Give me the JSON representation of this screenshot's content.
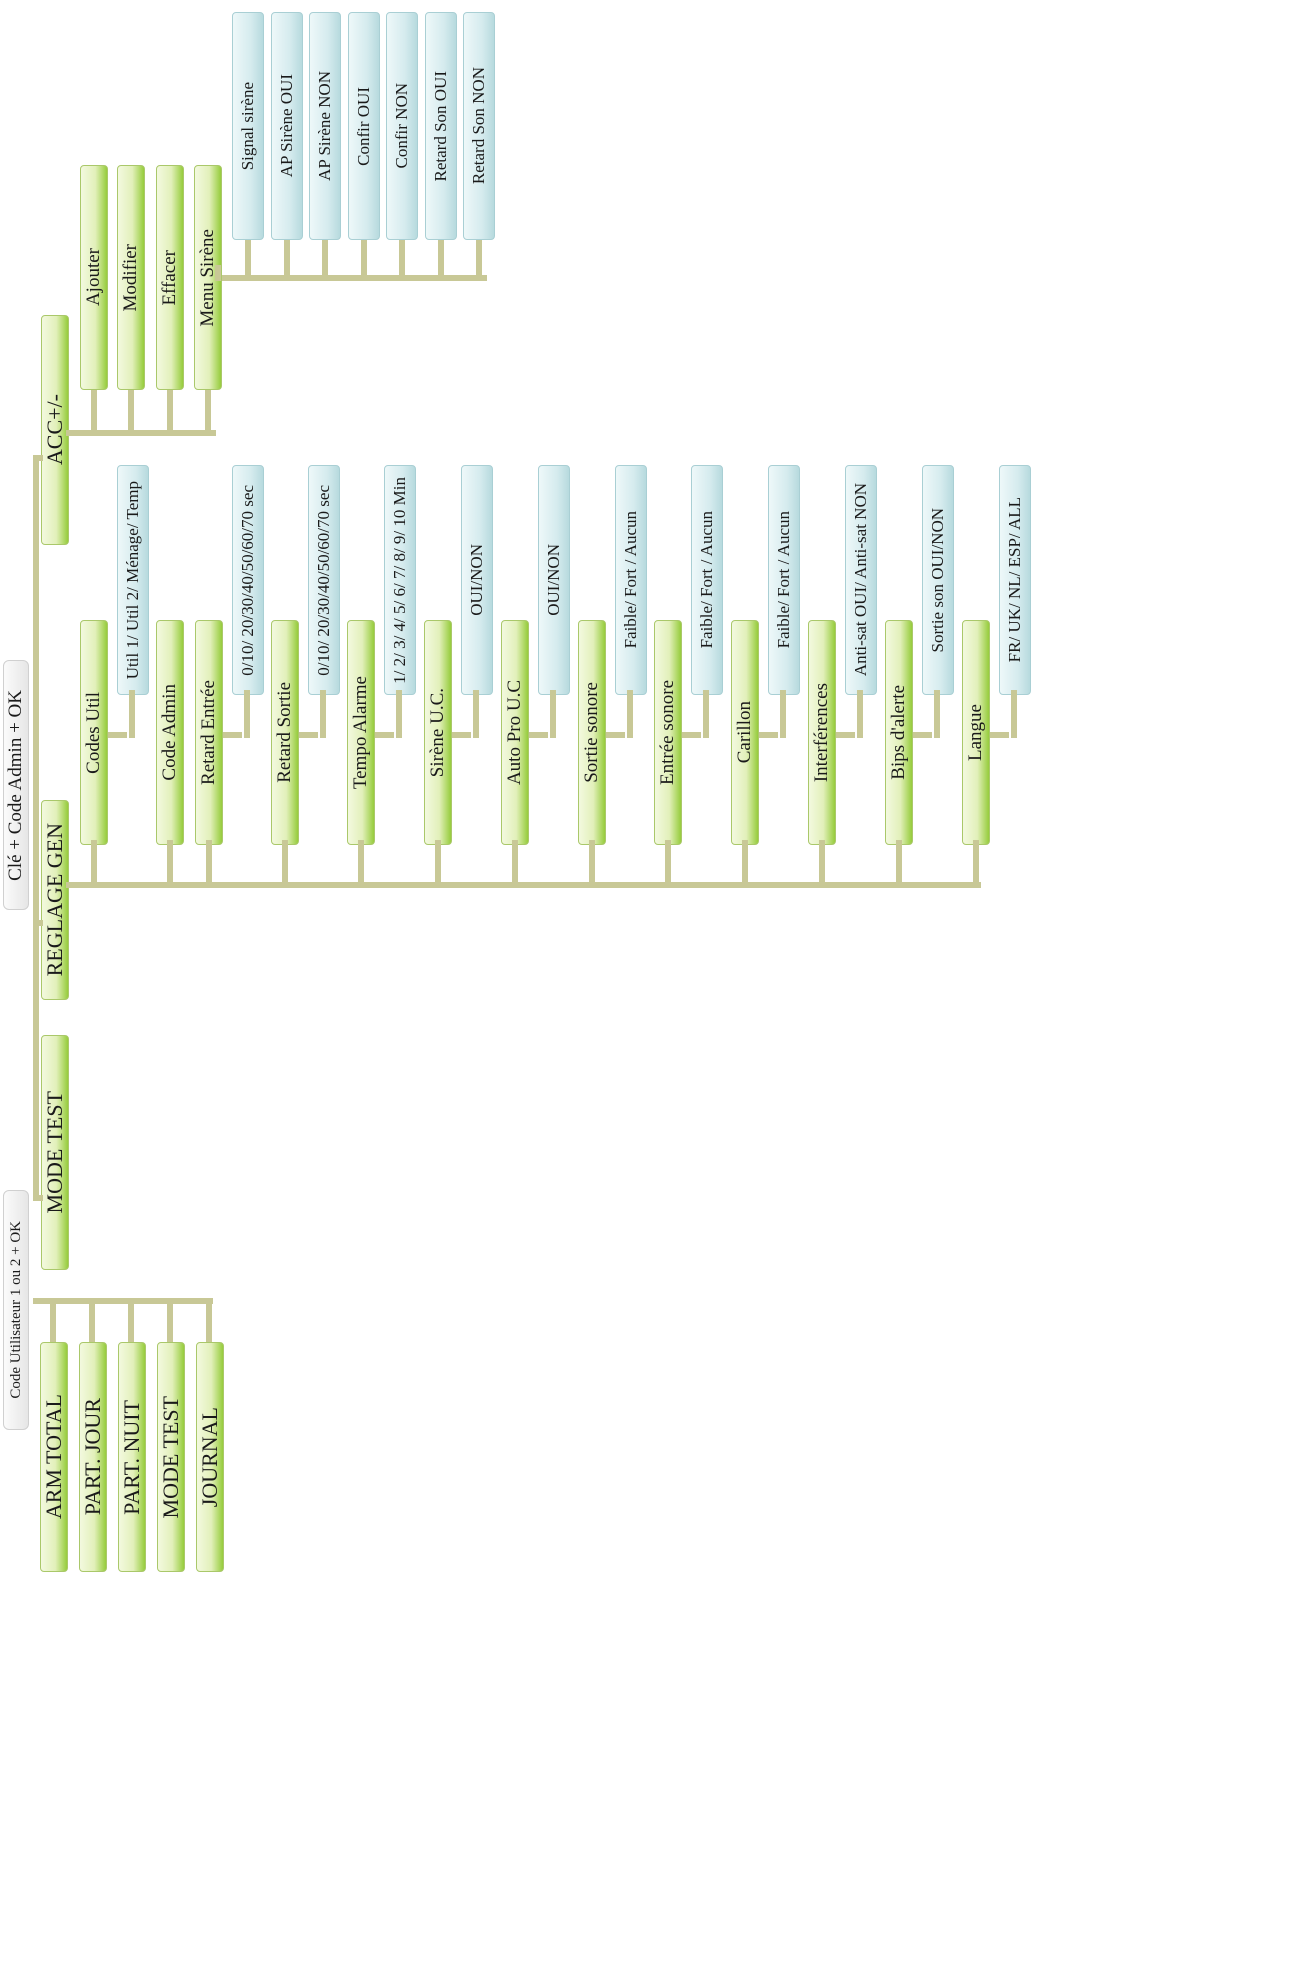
{
  "roots": {
    "admin": "Clé + Code Admin + OK",
    "user": "Code Utilisateur 1 ou 2 + OK"
  },
  "user_menu": [
    "ARM TOTAL",
    "PART. JOUR",
    "PART. NUIT",
    "MODE TEST",
    "JOURNAL"
  ],
  "admin_menu": {
    "mode_test": "MODE TEST",
    "reglage_gen": "REGLAGE GEN",
    "acc": "ACC+/-"
  },
  "reglage_items": [
    {
      "label": "Codes Util",
      "option": "Util 1/ Util 2/ Ménage/ Temp"
    },
    {
      "label": "Code Admin",
      "option": ""
    },
    {
      "label": "Retard Entrée",
      "option": "0/10/ 20/30/40/50/60/70 sec"
    },
    {
      "label": "Retard Sortie",
      "option": "0/10/ 20/30/40/50/60/70 sec"
    },
    {
      "label": "Tempo Alarme",
      "option": "1/ 2/ 3/ 4/ 5/ 6/ 7/ 8/ 9/ 10 Min"
    },
    {
      "label": "Sirène U.C.",
      "option": "OUI/NON"
    },
    {
      "label": "Auto Pro U.C",
      "option": "OUI/NON"
    },
    {
      "label": "Sortie sonore",
      "option": "Faible/ Fort / Aucun"
    },
    {
      "label": "Entrée sonore",
      "option": "Faible/ Fort / Aucun"
    },
    {
      "label": "Carillon",
      "option": "Faible/ Fort / Aucun"
    },
    {
      "label": "Interférences",
      "option": "Anti-sat OUI/ Anti-sat NON"
    },
    {
      "label": "Bips d'alerte",
      "option": "Sortie son OUI/NON"
    },
    {
      "label": "Langue",
      "option": "FR/ UK/ NL/ ESP/ ALL"
    }
  ],
  "acc_items": [
    "Ajouter",
    "Modifier",
    "Effacer",
    "Menu Sirène"
  ],
  "sirene_items": [
    "Signal sirène",
    "AP Sirène OUI",
    "AP Sirène NON",
    "Confir OUI",
    "Confir NON",
    "Retard Son OUI",
    "Retard Son NON"
  ]
}
